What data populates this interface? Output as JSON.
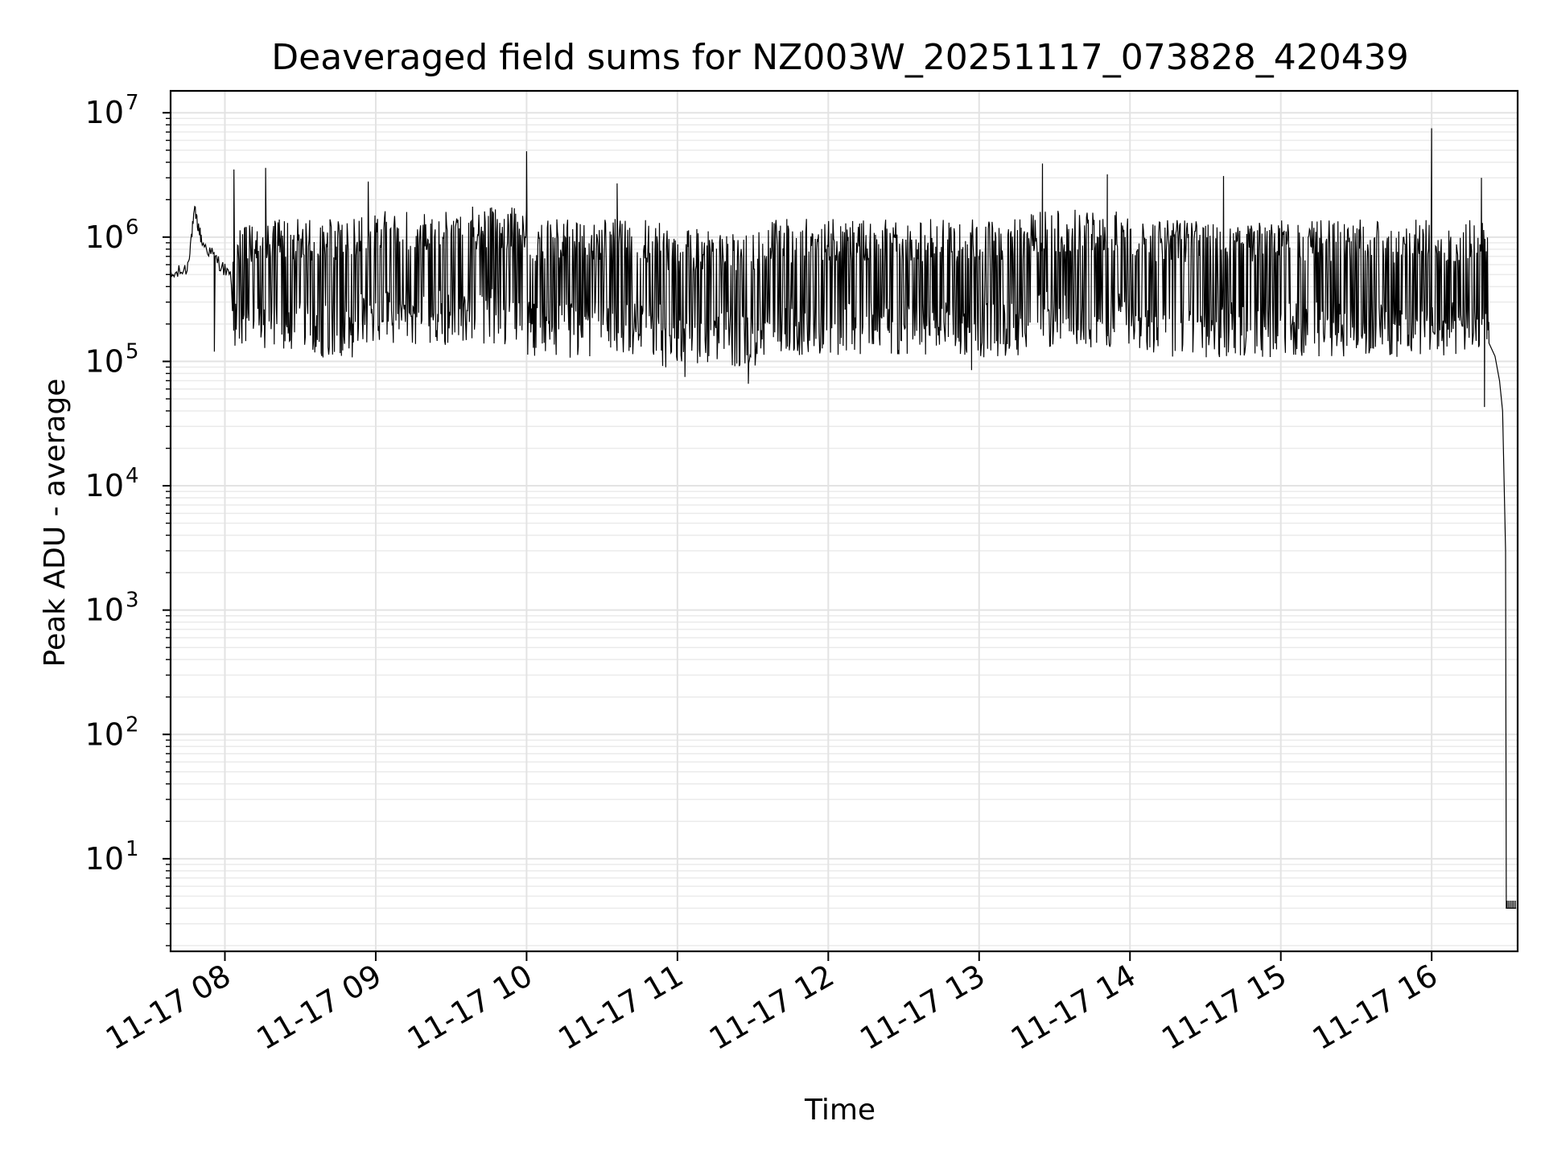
{
  "chart_data": {
    "type": "line",
    "title": "Deaveraged field sums for NZ003W_20251117_073828_420439",
    "xlabel": "Time",
    "ylabel": "Peak ADU - average",
    "yscale": "log",
    "ylim": [
      1.8,
      15000000
    ],
    "xlim_hours": [
      7.64,
      16.57
    ],
    "grid": true,
    "x_ticks": [
      {
        "hour": 8,
        "label": "11-17 08"
      },
      {
        "hour": 9,
        "label": "11-17 09"
      },
      {
        "hour": 10,
        "label": "11-17 10"
      },
      {
        "hour": 11,
        "label": "11-17 11"
      },
      {
        "hour": 12,
        "label": "11-17 12"
      },
      {
        "hour": 13,
        "label": "11-17 13"
      },
      {
        "hour": 14,
        "label": "11-17 14"
      },
      {
        "hour": 15,
        "label": "11-17 15"
      },
      {
        "hour": 16,
        "label": "11-17 16"
      }
    ],
    "y_ticks": [
      {
        "exp": 1,
        "base": "10",
        "sup": "1"
      },
      {
        "exp": 2,
        "base": "10",
        "sup": "2"
      },
      {
        "exp": 3,
        "base": "10",
        "sup": "3"
      },
      {
        "exp": 4,
        "base": "10",
        "sup": "4"
      },
      {
        "exp": 5,
        "base": "10",
        "sup": "5"
      },
      {
        "exp": 6,
        "base": "10",
        "sup": "6"
      },
      {
        "exp": 7,
        "base": "10",
        "sup": "7"
      }
    ],
    "series": [
      {
        "name": "Deaveraged field sum",
        "color": "#000000",
        "time_range_hours": [
          7.64,
          16.56
        ],
        "typical_upper": 1400000,
        "typical_lower": 180000,
        "anchors": [
          {
            "hour": 7.64,
            "value": 480000
          },
          {
            "hour": 7.75,
            "value": 560000
          },
          {
            "hour": 7.8,
            "value": 1600000
          },
          {
            "hour": 7.85,
            "value": 900000
          },
          {
            "hour": 7.95,
            "value": 650000
          },
          {
            "hour": 8.05,
            "value": 450000
          }
        ],
        "spikes": [
          {
            "hour": 8.06,
            "value": 3500000
          },
          {
            "hour": 8.27,
            "value": 3600000
          },
          {
            "hour": 8.95,
            "value": 2800000
          },
          {
            "hour": 10.0,
            "value": 4900000
          },
          {
            "hour": 10.6,
            "value": 2700000
          },
          {
            "hour": 13.42,
            "value": 3900000
          },
          {
            "hour": 13.85,
            "value": 3200000
          },
          {
            "hour": 14.62,
            "value": 3100000
          },
          {
            "hour": 16.0,
            "value": 7500000
          },
          {
            "hour": 16.33,
            "value": 3000000
          }
        ],
        "dips": [
          {
            "hour": 7.93,
            "value": 120000
          },
          {
            "hour": 11.47,
            "value": 66000
          },
          {
            "hour": 11.05,
            "value": 75000
          },
          {
            "hour": 12.95,
            "value": 85000
          },
          {
            "hour": 16.35,
            "value": 43000
          }
        ],
        "tail": [
          {
            "hour": 16.38,
            "value": 140000
          },
          {
            "hour": 16.42,
            "value": 110000
          },
          {
            "hour": 16.45,
            "value": 70000
          },
          {
            "hour": 16.47,
            "value": 40000
          },
          {
            "hour": 16.49,
            "value": 3000
          },
          {
            "hour": 16.495,
            "value": 4
          },
          {
            "hour": 16.56,
            "value": 4
          }
        ]
      }
    ]
  }
}
